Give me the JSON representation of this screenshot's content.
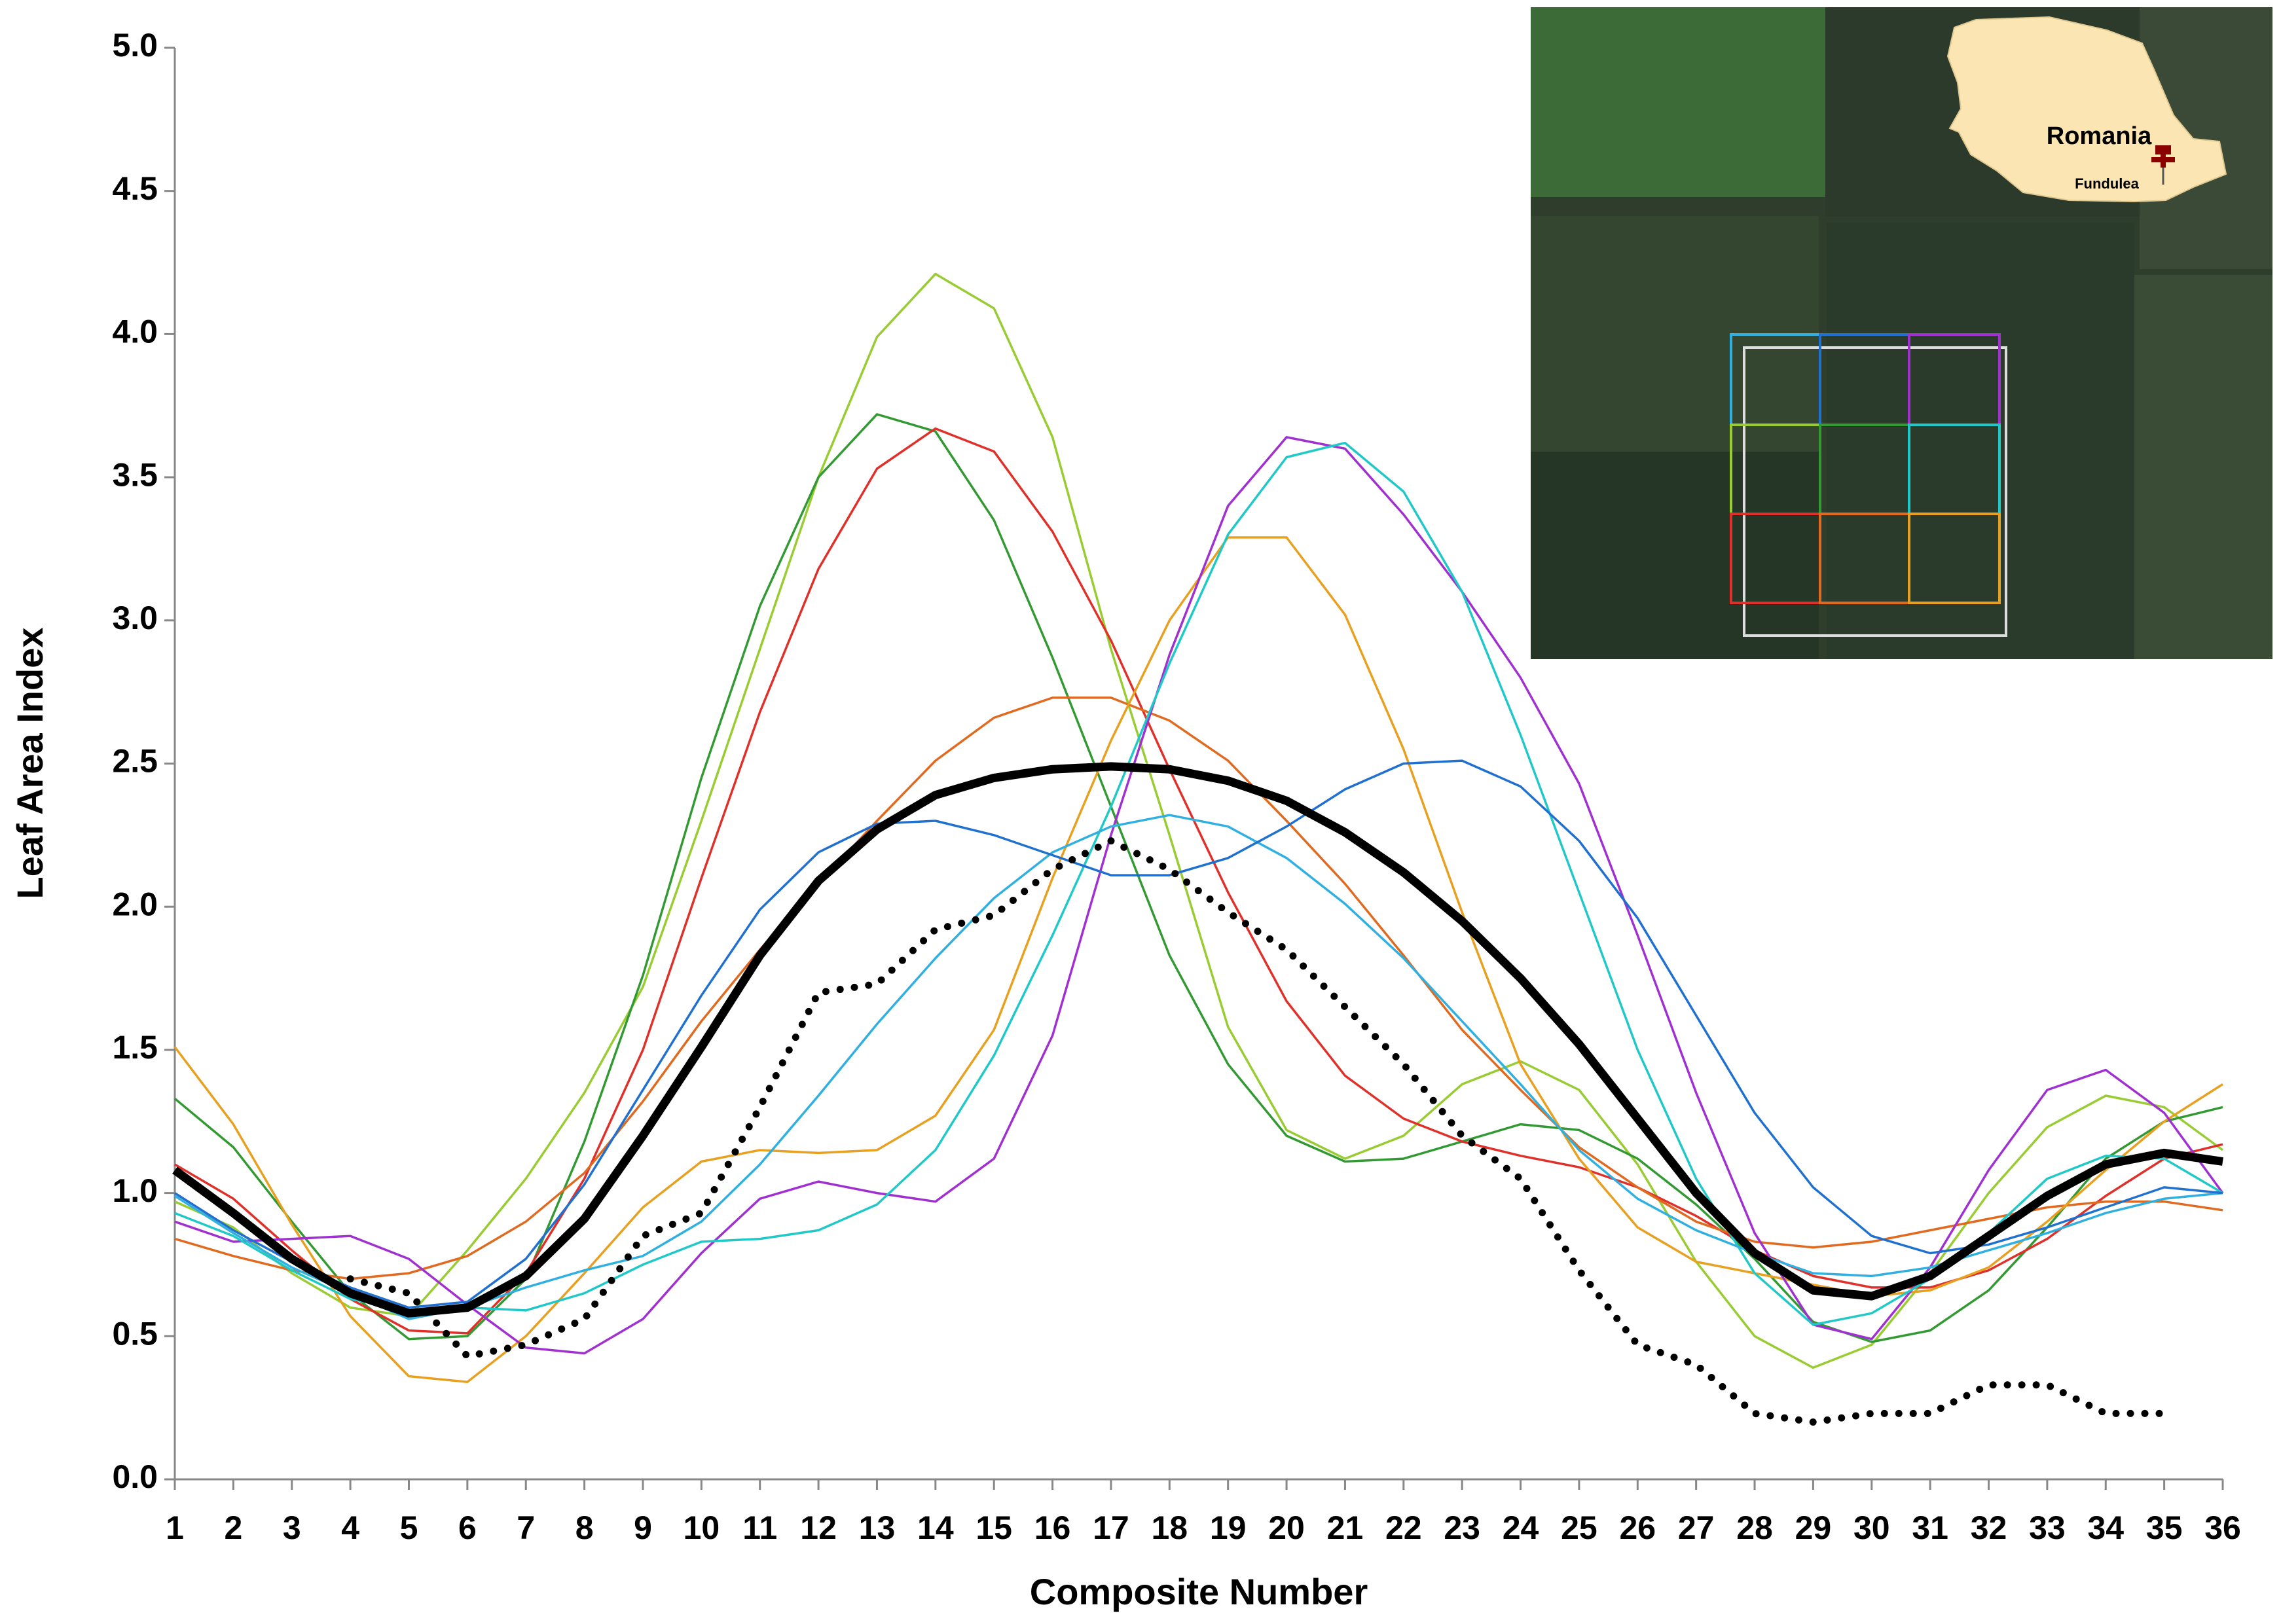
{
  "chart_data": {
    "type": "line",
    "x_label": "Composite Number",
    "y_label": "Leaf Area Index",
    "categories": [
      1,
      2,
      3,
      4,
      5,
      6,
      7,
      8,
      9,
      10,
      11,
      12,
      13,
      14,
      15,
      16,
      17,
      18,
      19,
      20,
      21,
      22,
      23,
      24,
      25,
      26,
      27,
      28,
      29,
      30,
      31,
      32,
      33,
      34,
      35,
      36
    ],
    "ylim": [
      0,
      5
    ],
    "yticks": [
      {
        "value": 0,
        "label": "0.0"
      },
      {
        "value": 0.5,
        "label": "0.5"
      },
      {
        "value": 1,
        "label": "1.0"
      },
      {
        "value": 1.5,
        "label": "1.5"
      },
      {
        "value": 2,
        "label": "2.0"
      },
      {
        "value": 2.5,
        "label": "2.5"
      },
      {
        "value": 3,
        "label": "3.0"
      },
      {
        "value": 3.5,
        "label": "3.5"
      },
      {
        "value": 4,
        "label": "4.0"
      },
      {
        "value": 4.5,
        "label": "4.5"
      },
      {
        "value": 5,
        "label": "5.0"
      }
    ],
    "grid": false,
    "series": [
      {
        "color": "#99cc33",
        "values": [
          0.97,
          0.88,
          0.72,
          0.6,
          0.57,
          0.8,
          1.05,
          1.35,
          1.72,
          2.3,
          2.9,
          3.5,
          3.99,
          4.21,
          4.09,
          3.64,
          2.9,
          2.25,
          1.58,
          1.22,
          1.12,
          1.2,
          1.38,
          1.46,
          1.36,
          1.1,
          0.76,
          0.5,
          0.39,
          0.47,
          0.72,
          1.0,
          1.23,
          1.34,
          1.3,
          1.15
        ]
      },
      {
        "color": "#339933",
        "values": [
          1.33,
          1.16,
          0.9,
          0.65,
          0.49,
          0.5,
          0.7,
          1.18,
          1.76,
          2.45,
          3.05,
          3.5,
          3.72,
          3.66,
          3.35,
          2.87,
          2.35,
          1.83,
          1.45,
          1.2,
          1.11,
          1.12,
          1.18,
          1.24,
          1.22,
          1.12,
          0.96,
          0.77,
          0.55,
          0.48,
          0.52,
          0.66,
          0.88,
          1.12,
          1.25,
          1.3
        ]
      },
      {
        "color": "#e0302a",
        "values": [
          1.1,
          0.98,
          0.8,
          0.63,
          0.52,
          0.51,
          0.72,
          1.05,
          1.5,
          2.1,
          2.68,
          3.18,
          3.53,
          3.67,
          3.59,
          3.31,
          2.93,
          2.48,
          2.05,
          1.67,
          1.41,
          1.26,
          1.18,
          1.13,
          1.09,
          1.02,
          0.92,
          0.8,
          0.71,
          0.67,
          0.67,
          0.73,
          0.84,
          0.99,
          1.12,
          1.17
        ]
      },
      {
        "color": "#e06a20",
        "values": [
          0.84,
          0.78,
          0.73,
          0.7,
          0.72,
          0.78,
          0.9,
          1.07,
          1.32,
          1.6,
          1.85,
          2.08,
          2.3,
          2.51,
          2.66,
          2.73,
          2.73,
          2.65,
          2.51,
          2.3,
          2.08,
          1.83,
          1.57,
          1.36,
          1.16,
          1.02,
          0.9,
          0.83,
          0.81,
          0.83,
          0.87,
          0.91,
          0.95,
          0.97,
          0.97,
          0.94
        ]
      },
      {
        "color": "#e8a020",
        "values": [
          1.51,
          1.24,
          0.89,
          0.57,
          0.36,
          0.34,
          0.5,
          0.72,
          0.95,
          1.11,
          1.15,
          1.14,
          1.15,
          1.27,
          1.57,
          2.1,
          2.58,
          3.0,
          3.29,
          3.29,
          3.02,
          2.55,
          1.98,
          1.45,
          1.12,
          0.88,
          0.76,
          0.72,
          0.68,
          0.64,
          0.66,
          0.74,
          0.9,
          1.08,
          1.25,
          1.38
        ]
      },
      {
        "color": "#a030d0",
        "values": [
          0.9,
          0.83,
          0.84,
          0.85,
          0.77,
          0.61,
          0.46,
          0.44,
          0.56,
          0.79,
          0.98,
          1.04,
          1.0,
          0.97,
          1.12,
          1.55,
          2.25,
          2.88,
          3.4,
          3.64,
          3.6,
          3.37,
          3.1,
          2.8,
          2.43,
          1.9,
          1.35,
          0.86,
          0.54,
          0.49,
          0.74,
          1.08,
          1.36,
          1.43,
          1.28,
          1.0
        ]
      },
      {
        "color": "#20c8c8",
        "values": [
          0.93,
          0.85,
          0.73,
          0.63,
          0.59,
          0.6,
          0.59,
          0.65,
          0.75,
          0.83,
          0.84,
          0.87,
          0.96,
          1.15,
          1.48,
          1.9,
          2.35,
          2.85,
          3.3,
          3.57,
          3.62,
          3.45,
          3.1,
          2.6,
          2.05,
          1.5,
          1.05,
          0.72,
          0.54,
          0.58,
          0.7,
          0.86,
          1.05,
          1.13,
          1.12,
          1.0
        ]
      },
      {
        "color": "#30b0e0",
        "values": [
          0.99,
          0.86,
          0.74,
          0.65,
          0.56,
          0.6,
          0.67,
          0.73,
          0.78,
          0.9,
          1.1,
          1.34,
          1.59,
          1.82,
          2.03,
          2.19,
          2.28,
          2.32,
          2.28,
          2.17,
          2.01,
          1.82,
          1.6,
          1.38,
          1.15,
          0.98,
          0.87,
          0.79,
          0.72,
          0.71,
          0.74,
          0.8,
          0.86,
          0.93,
          0.98,
          1.0
        ]
      },
      {
        "color": "#2070d0",
        "values": [
          1.0,
          0.87,
          0.76,
          0.67,
          0.6,
          0.62,
          0.77,
          1.03,
          1.36,
          1.69,
          1.99,
          2.19,
          2.29,
          2.3,
          2.25,
          2.18,
          2.11,
          2.11,
          2.17,
          2.28,
          2.41,
          2.5,
          2.51,
          2.42,
          2.23,
          1.96,
          1.62,
          1.28,
          1.02,
          0.85,
          0.79,
          0.82,
          0.88,
          0.95,
          1.02,
          1.0
        ]
      },
      {
        "color": "#000000",
        "style": "thick",
        "values": [
          1.08,
          0.93,
          0.77,
          0.65,
          0.58,
          0.6,
          0.71,
          0.91,
          1.2,
          1.51,
          1.83,
          2.09,
          2.27,
          2.39,
          2.45,
          2.48,
          2.49,
          2.48,
          2.44,
          2.37,
          2.26,
          2.12,
          1.95,
          1.75,
          1.52,
          1.26,
          1.0,
          0.79,
          0.66,
          0.64,
          0.71,
          0.85,
          0.99,
          1.1,
          1.14,
          1.11
        ]
      },
      {
        "color": "#000000",
        "style": "dotted",
        "values": [
          null,
          null,
          null,
          0.7,
          0.65,
          0.43,
          0.47,
          0.56,
          0.85,
          0.93,
          1.3,
          1.7,
          1.73,
          1.92,
          1.97,
          2.13,
          2.23,
          2.13,
          1.98,
          1.85,
          1.65,
          1.45,
          1.2,
          1.05,
          0.73,
          0.47,
          0.4,
          0.23,
          0.2,
          0.23,
          0.23,
          0.33,
          0.33,
          0.23,
          0.23,
          null
        ]
      }
    ]
  },
  "inset": {
    "country": "Romania",
    "site": "Fundulea"
  }
}
